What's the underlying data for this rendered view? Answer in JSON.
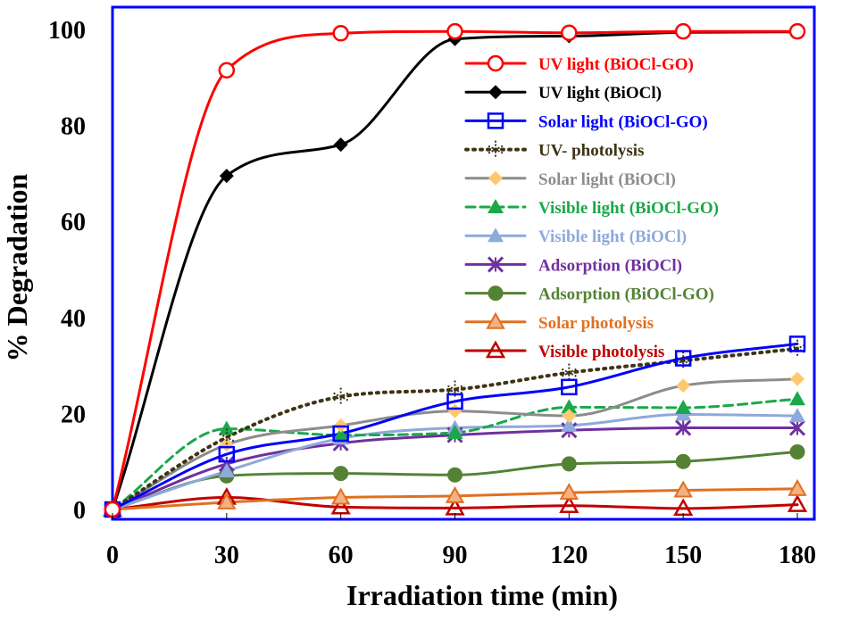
{
  "chart_data": {
    "type": "line",
    "title": "",
    "xlabel": "Irradiation time (min)",
    "ylabel": "% Degradation",
    "xlim": [
      0,
      180
    ],
    "ylim": [
      0,
      100
    ],
    "xticks": [
      "0",
      "30",
      "60",
      "90",
      "120",
      "150",
      "180"
    ],
    "yticks": [
      "0",
      "20",
      "40",
      "60",
      "80",
      "100"
    ],
    "x": [
      0,
      30,
      60,
      90,
      120,
      150,
      180
    ],
    "legend_position": "top-right",
    "series": [
      {
        "name": "UV light (BiOCl-GO)",
        "color": "#ff0000",
        "marker": "circle-open",
        "dash": "solid",
        "values": [
          0,
          91.5,
          99.2,
          99.6,
          99.3,
          99.6,
          99.6
        ]
      },
      {
        "name": "UV light (BiOCl)",
        "color": "#000000",
        "marker": "diamond",
        "dash": "solid",
        "values": [
          0,
          69.5,
          76,
          98,
          98.6,
          99.4,
          99.5
        ]
      },
      {
        "name": "Solar light (BiOCl-GO)",
        "color": "#0000ff",
        "marker": "square-open",
        "dash": "solid",
        "values": [
          0,
          11.5,
          15.8,
          22.5,
          25.5,
          31.5,
          34.5
        ]
      },
      {
        "name": "UV- photolysis",
        "color": "#3d3414",
        "marker": "star",
        "dash": "dotted",
        "values": [
          0,
          15,
          23.5,
          25,
          28.5,
          31,
          33.5
        ]
      },
      {
        "name": "Solar light (BiOCl)",
        "color": "#8c8c8c",
        "marker": "diamond-gold",
        "dash": "solid",
        "values": [
          0,
          13.5,
          17.5,
          20.5,
          19.5,
          25.8,
          27.2
        ]
      },
      {
        "name": "Visible light (BiOCl-GO)",
        "color": "#1aa84a",
        "marker": "triangle",
        "dash": "dashed",
        "values": [
          0,
          16.8,
          15.5,
          16,
          21.3,
          21.2,
          23
        ]
      },
      {
        "name": "Visible light (BiOCl)",
        "color": "#8ea9db",
        "marker": "triangle",
        "dash": "solid",
        "values": [
          0,
          8,
          14.8,
          17,
          17.5,
          19.8,
          19.5
        ]
      },
      {
        "name": "Adsorption (BiOCl)",
        "color": "#7030a0",
        "marker": "x-star",
        "dash": "solid",
        "values": [
          0,
          9.5,
          13.8,
          15.5,
          16.5,
          17,
          17
        ]
      },
      {
        "name": "Adsorption (BiOCl-GO)",
        "color": "#548235",
        "marker": "circle",
        "dash": "solid",
        "values": [
          0,
          7,
          7.5,
          7.2,
          9.5,
          10,
          12
        ]
      },
      {
        "name": "Solar photolysis",
        "color": "#e07020",
        "marker": "triangle-orange",
        "dash": "solid",
        "values": [
          0,
          1.5,
          2.5,
          2.8,
          3.5,
          4,
          4.3
        ]
      },
      {
        "name": "Visible photolysis",
        "color": "#c00000",
        "marker": "triangle-open",
        "dash": "solid",
        "values": [
          0,
          2.5,
          0.5,
          0.3,
          0.8,
          0.2,
          1
        ]
      }
    ]
  }
}
